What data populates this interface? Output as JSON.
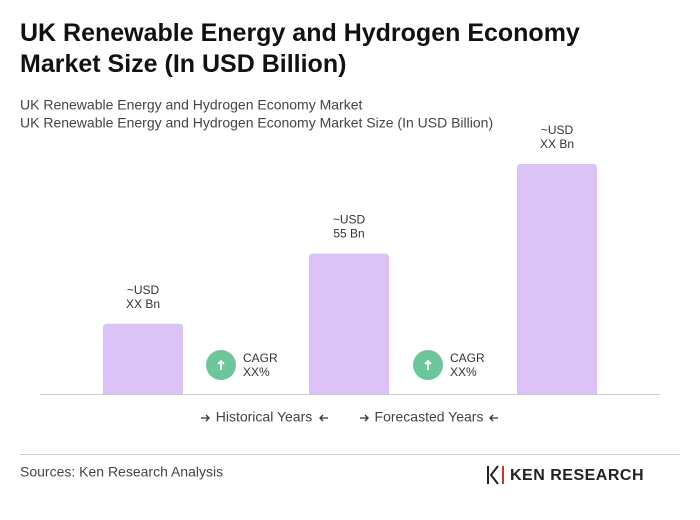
{
  "chart_data": {
    "type": "bar",
    "title": "UK Renewable Energy and Hydrogen Economy Market Size (In USD Billion)",
    "subtitle": [
      "UK Renewable Energy and Hydrogen Economy Market",
      "UK Renewable Energy and Hydrogen Economy Market Size (In USD Billion)"
    ],
    "categories": [
      null,
      null,
      null
    ],
    "values": [
      27.5,
      55,
      90
    ],
    "value_labels": [
      [
        "~USD",
        "XX Bn"
      ],
      [
        "~USD",
        "55 Bn"
      ],
      [
        "~USD",
        "XX Bn"
      ]
    ],
    "color": "#dcc3f7",
    "annotations": [
      [
        "CAGR",
        "XX%"
      ],
      [
        "CAGR",
        "XX%"
      ]
    ],
    "periods": [
      "Historical Years",
      "Forecasted Years"
    ],
    "source": "Sources: Ken Research Analysis",
    "logo": "KEN RESEARCH"
  }
}
